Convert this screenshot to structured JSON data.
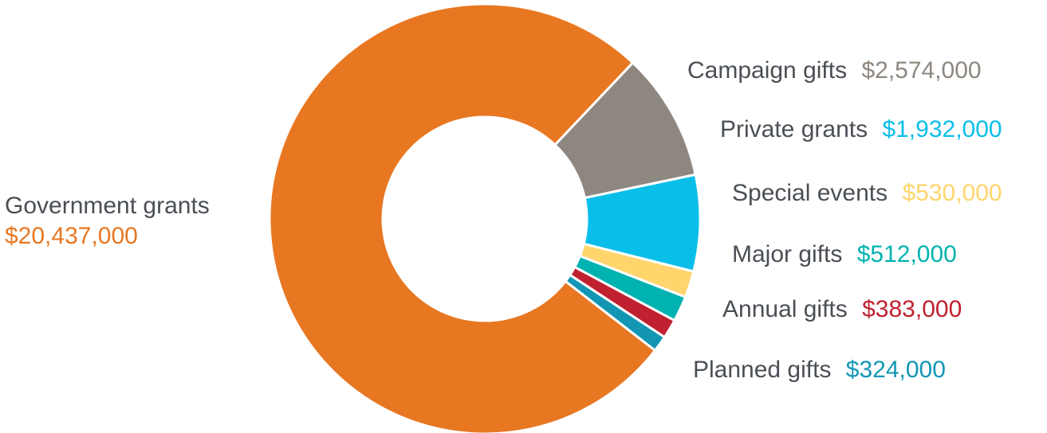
{
  "chart_data": {
    "type": "pie",
    "variant": "donut",
    "title": "",
    "slices": [
      {
        "label": "Government grants",
        "value_label": "$20,437,000",
        "value": 20437000,
        "color": "#e87722"
      },
      {
        "label": "Campaign gifts",
        "value_label": "$2,574,000",
        "value": 2574000,
        "color": "#8e8780"
      },
      {
        "label": "Private grants",
        "value_label": "$1,932,000",
        "value": 1932000,
        "color": "#0abeea"
      },
      {
        "label": "Special events",
        "value_label": "$530,000",
        "value": 530000,
        "color": "#ffd56c"
      },
      {
        "label": "Major gifts",
        "value_label": "$512,000",
        "value": 512000,
        "color": "#00b3b0"
      },
      {
        "label": "Annual gifts",
        "value_label": "$383,000",
        "value": 383000,
        "color": "#c0202f"
      },
      {
        "label": "Planned gifts",
        "value_label": "$324,000",
        "value": 324000,
        "color": "#1296b4"
      }
    ],
    "legend": "labels beside slices",
    "name_color": "#4a4f55"
  }
}
